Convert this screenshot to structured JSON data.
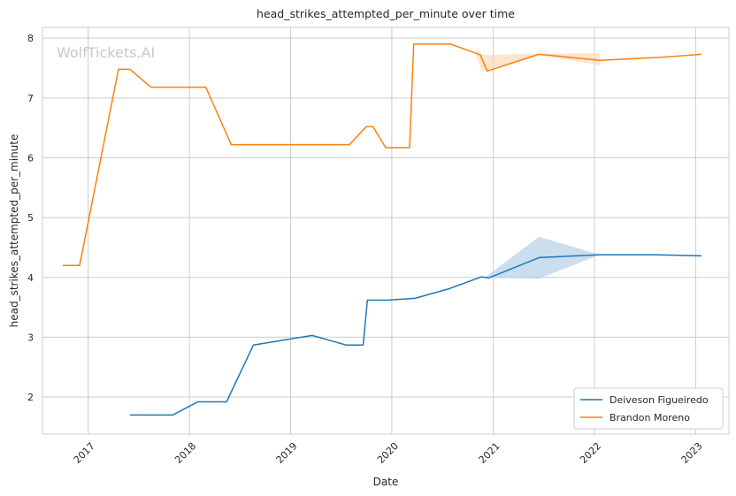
{
  "watermark": "WolfTickets.AI",
  "chart_data": {
    "type": "line",
    "title": "head_strikes_attempted_per_minute over time",
    "xlabel": "Date",
    "ylabel": "head_strikes_attempted_per_minute",
    "x_ticks": [
      "2017",
      "2018",
      "2019",
      "2020",
      "2021",
      "2022",
      "2023"
    ],
    "y_ticks": [
      "2",
      "3",
      "4",
      "5",
      "6",
      "7",
      "8"
    ],
    "xlim": [
      "2016-07-20",
      "2023-05-01"
    ],
    "ylim": [
      1.38,
      8.18
    ],
    "grid": true,
    "legend_position": "bottom-right",
    "series": [
      {
        "name": "Deiveson Figueiredo",
        "color": "#1f77b4",
        "band_color": "#a6c8e4",
        "points": [
          [
            "2017-06-01",
            1.7
          ],
          [
            "2017-11-01",
            1.7
          ],
          [
            "2018-02-01",
            1.92
          ],
          [
            "2018-05-15",
            1.92
          ],
          [
            "2018-08-20",
            2.87
          ],
          [
            "2019-03-20",
            3.03
          ],
          [
            "2019-07-20",
            2.87
          ],
          [
            "2019-09-20",
            2.87
          ],
          [
            "2019-10-05",
            3.62
          ],
          [
            "2019-12-15",
            3.62
          ],
          [
            "2020-03-25",
            3.65
          ],
          [
            "2020-07-25",
            3.81
          ],
          [
            "2020-11-20",
            4.01
          ],
          [
            "2020-12-15",
            3.99
          ],
          [
            "2021-06-15",
            4.33
          ],
          [
            "2022-01-20",
            4.38
          ],
          [
            "2022-08-01",
            4.38
          ],
          [
            "2023-01-22",
            4.36
          ]
        ],
        "band": [
          [
            "2020-12-05",
            4.0,
            4.01
          ],
          [
            "2021-06-15",
            3.98,
            4.68
          ],
          [
            "2022-01-20",
            4.38,
            4.38
          ]
        ]
      },
      {
        "name": "Brandon Moreno",
        "color": "#ff7f0e",
        "band_color": "#fcd3ad",
        "points": [
          [
            "2016-10-01",
            4.2
          ],
          [
            "2016-12-01",
            4.2
          ],
          [
            "2017-04-20",
            7.48
          ],
          [
            "2017-06-01",
            7.48
          ],
          [
            "2017-08-15",
            7.18
          ],
          [
            "2018-03-01",
            7.18
          ],
          [
            "2018-06-01",
            6.22
          ],
          [
            "2019-08-01",
            6.22
          ],
          [
            "2019-10-01",
            6.52
          ],
          [
            "2019-10-25",
            6.52
          ],
          [
            "2019-12-10",
            6.17
          ],
          [
            "2020-03-05",
            6.17
          ],
          [
            "2020-03-20",
            7.9
          ],
          [
            "2020-08-01",
            7.9
          ],
          [
            "2020-11-15",
            7.72
          ],
          [
            "2020-12-10",
            7.45
          ],
          [
            "2021-06-15",
            7.73
          ],
          [
            "2022-01-20",
            7.63
          ],
          [
            "2022-09-01",
            7.68
          ],
          [
            "2023-01-22",
            7.73
          ]
        ],
        "band": [
          [
            "2020-11-01",
            7.7,
            7.85
          ],
          [
            "2020-11-20",
            7.45,
            7.72
          ],
          [
            "2021-06-15",
            7.72,
            7.74
          ],
          [
            "2022-01-20",
            7.55,
            7.75
          ]
        ]
      }
    ]
  }
}
